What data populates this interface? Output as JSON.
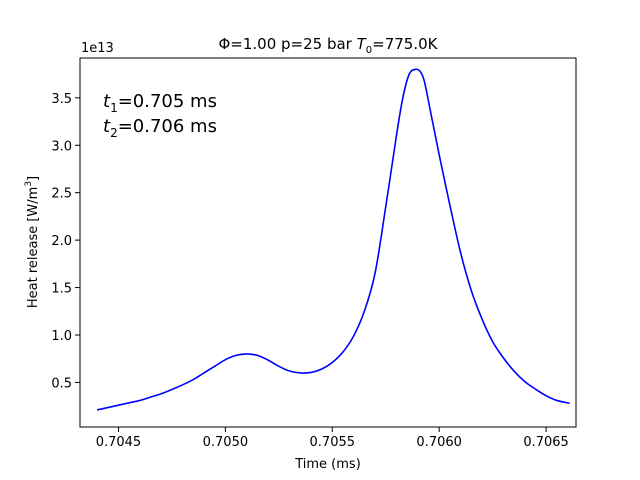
{
  "chart_data": {
    "type": "line",
    "title": {
      "prefix": "Φ=1.00 p=25 bar ",
      "var": "T",
      "sub": "0",
      "suffix": "=775.0K"
    },
    "xlabel": "Time (ms)",
    "ylabel": {
      "text": "Heat release [W/m",
      "sup": "3",
      "close": "]"
    },
    "y_offset_label": "1e13",
    "y_scale": 10000000000000.0,
    "xlim": [
      0.70432,
      0.70664
    ],
    "ylim": [
      300000000000.0,
      39200000000000.0
    ],
    "x_ticks": [
      0.7045,
      0.705,
      0.7055,
      0.706,
      0.7065
    ],
    "x_tick_labels": [
      "0.7045",
      "0.7050",
      "0.7055",
      "0.7060",
      "0.7065"
    ],
    "y_ticks": [
      5000000000000.0,
      10000000000000.0,
      15000000000000.0,
      20000000000000.0,
      25000000000000.0,
      30000000000000.0,
      35000000000000.0
    ],
    "y_tick_labels": [
      "0.5",
      "1.0",
      "1.5",
      "2.0",
      "2.5",
      "3.0",
      "3.5"
    ],
    "grid": false,
    "annotations": [
      {
        "var": "t",
        "sub": "1",
        "text": "=0.705 ms"
      },
      {
        "var": "t",
        "sub": "2",
        "text": "=0.706 ms"
      }
    ],
    "series": [
      {
        "color": "#0000ff",
        "x": [
          0.7044,
          0.70445,
          0.7045,
          0.70455,
          0.7046,
          0.70465,
          0.7047,
          0.70475,
          0.7048,
          0.70485,
          0.7049,
          0.70495,
          0.705,
          0.70505,
          0.7051,
          0.70515,
          0.7052,
          0.70525,
          0.7053,
          0.70535,
          0.7054,
          0.70545,
          0.7055,
          0.70555,
          0.7056,
          0.70565,
          0.7057,
          0.70575,
          0.7058,
          0.70583,
          0.70586,
          0.70589,
          0.70591,
          0.70593,
          0.70596,
          0.706,
          0.70605,
          0.7061,
          0.70615,
          0.7062,
          0.70625,
          0.7063,
          0.70635,
          0.7064,
          0.70645,
          0.7065,
          0.70655,
          0.70661
        ],
        "y": [
          2100000000000.0,
          2350000000000.0,
          2600000000000.0,
          2850000000000.0,
          3100000000000.0,
          3450000000000.0,
          3800000000000.0,
          4250000000000.0,
          4750000000000.0,
          5300000000000.0,
          6000000000000.0,
          6700000000000.0,
          7400000000000.0,
          7850000000000.0,
          8000000000000.0,
          7850000000000.0,
          7350000000000.0,
          6700000000000.0,
          6200000000000.0,
          6000000000000.0,
          6050000000000.0,
          6400000000000.0,
          7100000000000.0,
          8200000000000.0,
          9900000000000.0,
          12500000000000.0,
          16500000000000.0,
          23500000000000.0,
          31000000000000.0,
          35000000000000.0,
          37500000000000.0,
          38000000000000.0,
          37800000000000.0,
          36800000000000.0,
          33500000000000.0,
          29000000000000.0,
          23700000000000.0,
          18700000000000.0,
          14700000000000.0,
          11700000000000.0,
          9300000000000.0,
          7600000000000.0,
          6200000000000.0,
          5100000000000.0,
          4300000000000.0,
          3600000000000.0,
          3100000000000.0,
          2800000000000.0
        ]
      }
    ]
  }
}
